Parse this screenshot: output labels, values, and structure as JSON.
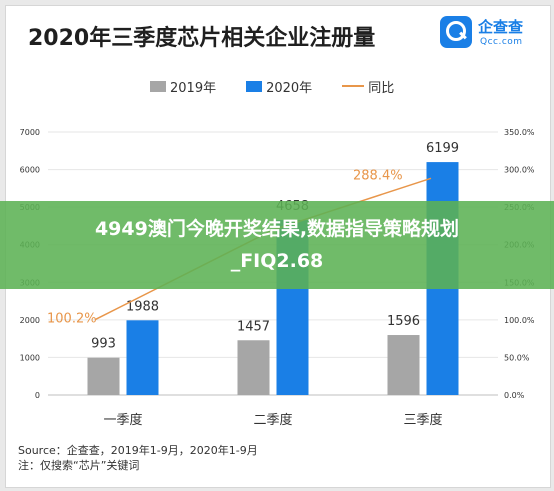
{
  "banner": {
    "line1": "4949澳门今晚开奖结果,数据指导策略规划",
    "line2": "_FIQ2.68"
  },
  "logo": {
    "name": "企查查",
    "domain": "Qcc.com"
  },
  "footer": {
    "source": "Source：企查查，2019年1-9月，2020年1-9月",
    "note": "注：仅搜索“芯片”关键词"
  },
  "colors": {
    "s2019": "#a6a6a6",
    "s2020": "#1a7fe6",
    "yoy": "#e8964a",
    "banner": "#5cb254"
  },
  "chart_data": {
    "type": "bar",
    "title": "2020年三季度芯片相关企业注册量",
    "categories": [
      "一季度",
      "二季度",
      "三季度"
    ],
    "series": [
      {
        "name": "2019年",
        "type": "bar",
        "values": [
          993,
          1457,
          1596
        ],
        "labels": [
          "993",
          "1457",
          "1596"
        ]
      },
      {
        "name": "2020年",
        "type": "bar",
        "values": [
          1988,
          4658,
          6199
        ],
        "labels": [
          "1988",
          "4658",
          "6199"
        ]
      },
      {
        "name": "同比",
        "type": "line",
        "axis": "right",
        "values": [
          100.2,
          219.7,
          288.4
        ],
        "labels": [
          "100.2%",
          "",
          "288.4%"
        ]
      }
    ],
    "left_axis": {
      "ylim": [
        0,
        7000
      ],
      "ticks": [
        0,
        1000,
        2000,
        3000,
        4000,
        5000,
        6000,
        7000
      ],
      "tick_labels": [
        "0",
        "1000",
        "2000",
        "3000",
        "4000",
        "5000",
        "6000",
        "7000"
      ]
    },
    "right_axis": {
      "ylim": [
        0,
        350
      ],
      "ticks": [
        0,
        50,
        100,
        150,
        200,
        250,
        300,
        350
      ],
      "tick_labels": [
        "0.0%",
        "50.0%",
        "100.0%",
        "150.0%",
        "200.0%",
        "250.0%",
        "300.0%",
        "350.0%"
      ]
    },
    "grid": true,
    "legend_position": "top-center"
  }
}
